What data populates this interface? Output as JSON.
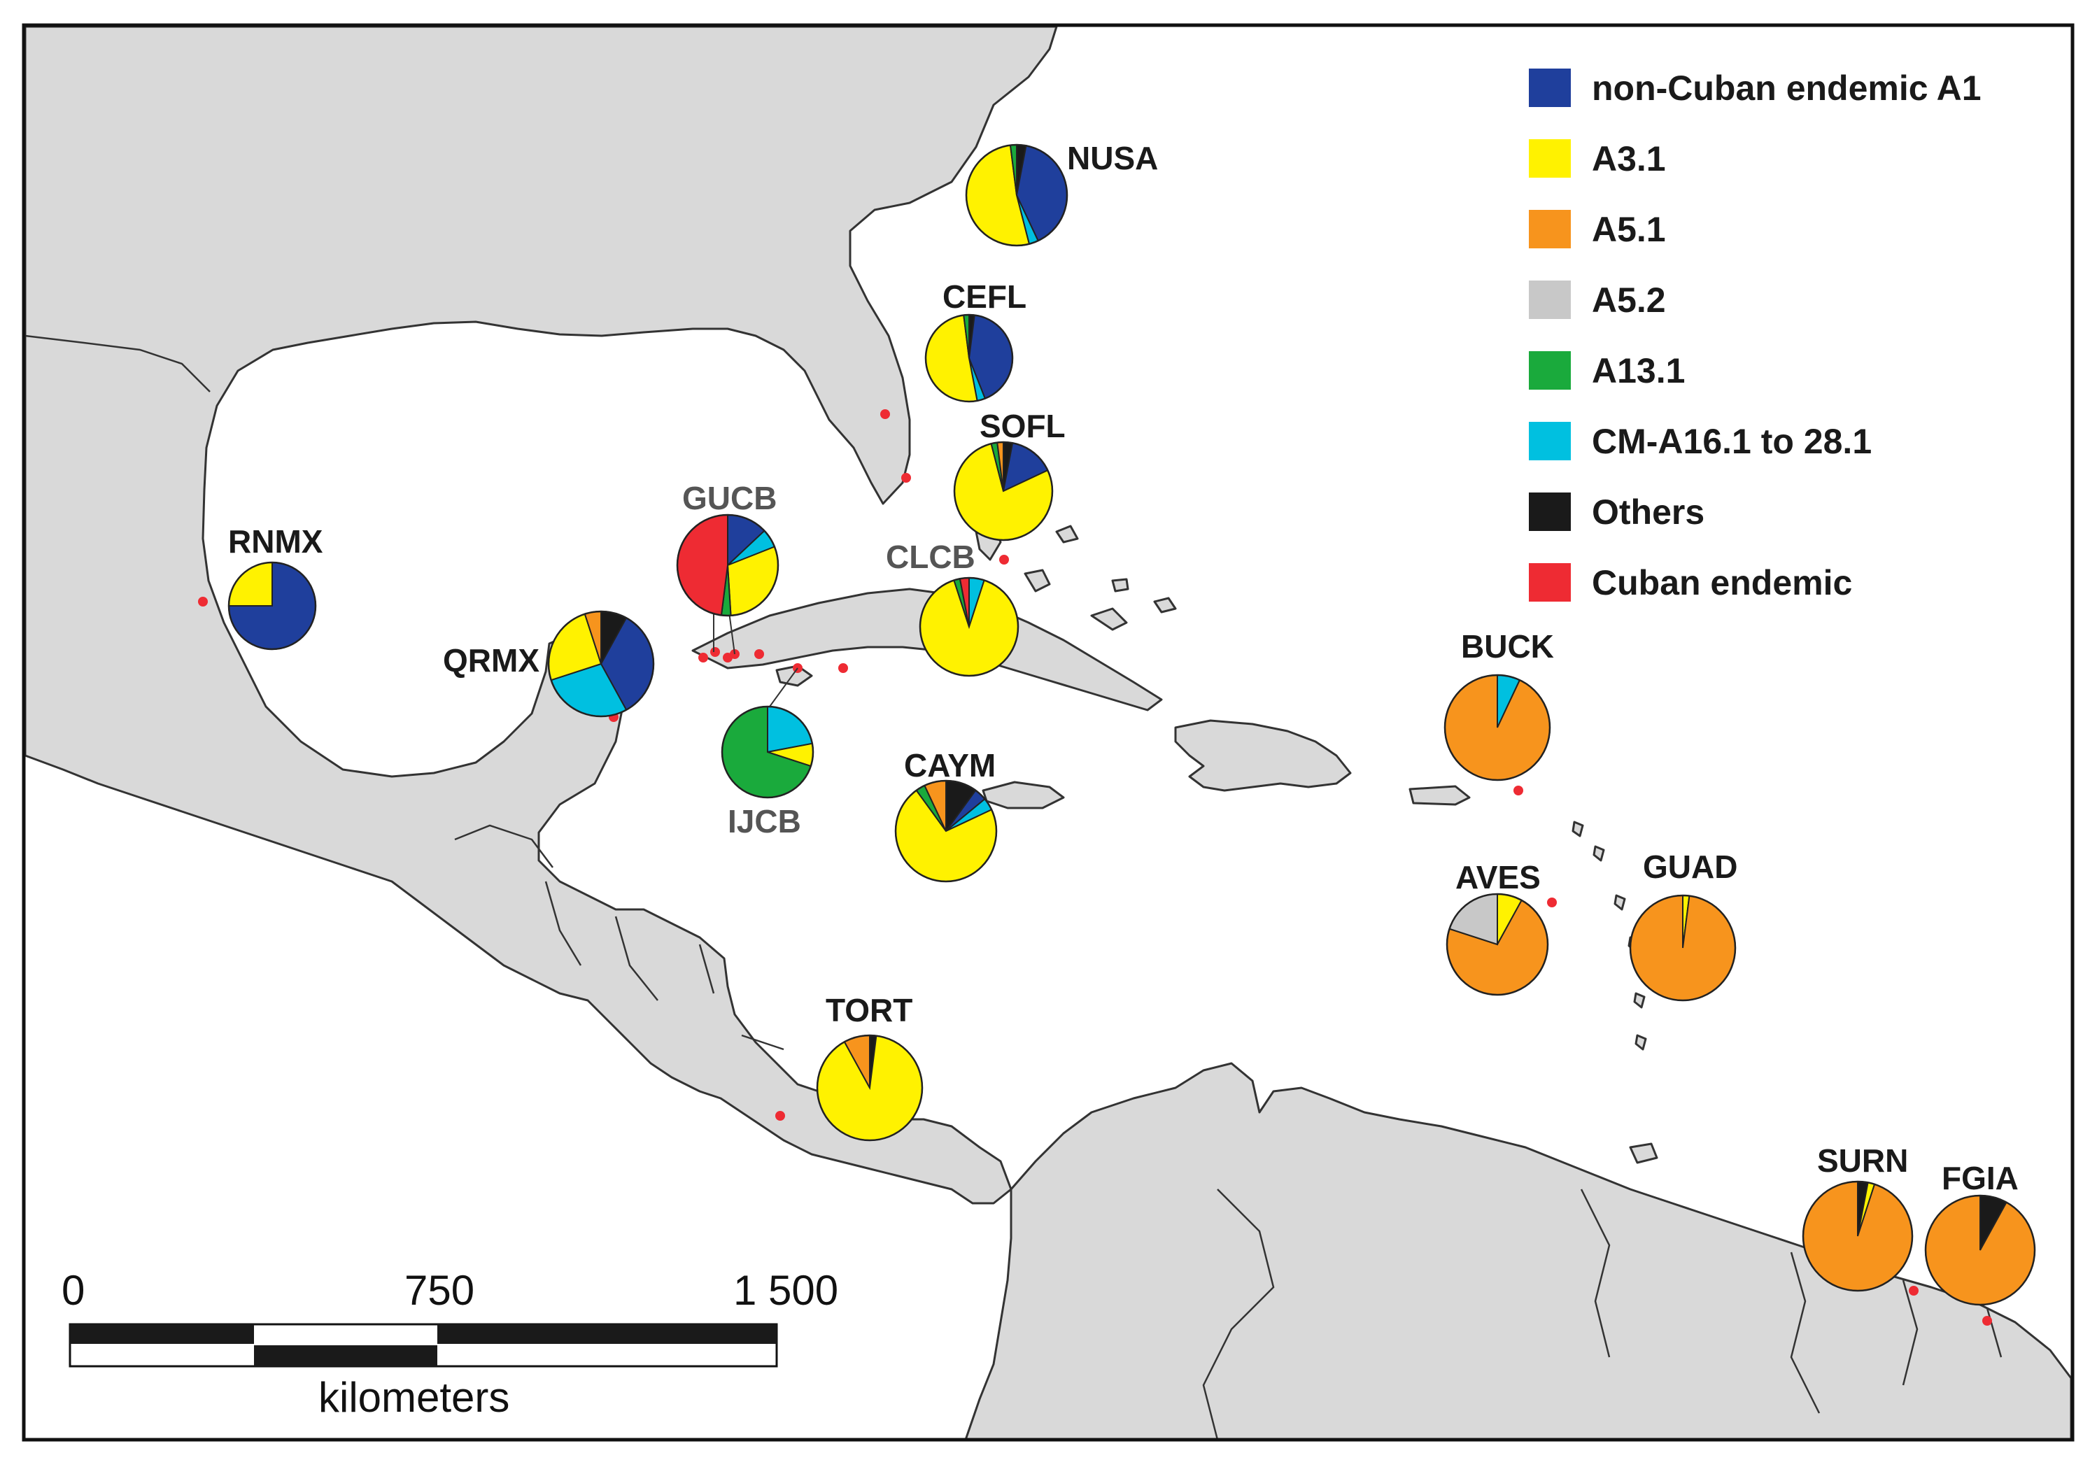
{
  "legend": [
    {
      "key": "A1",
      "label": "non-Cuban endemic A1",
      "color": "#1f3f9c"
    },
    {
      "key": "A3_1",
      "label": "A3.1",
      "color": "#fff200"
    },
    {
      "key": "A5_1",
      "label": "A5.1",
      "color": "#f7941d"
    },
    {
      "key": "A5_2",
      "label": "A5.2",
      "color": "#c8c8c8"
    },
    {
      "key": "A13_1",
      "label": "A13.1",
      "color": "#1aaa3c"
    },
    {
      "key": "CM",
      "label": "CM-A16.1 to 28.1",
      "color": "#00c0e0"
    },
    {
      "key": "Others",
      "label": "Others",
      "color": "#1a1a1a"
    },
    {
      "key": "Cuban",
      "label": "Cuban endemic",
      "color": "#ee2b33"
    }
  ],
  "sites": [
    {
      "code": "NUSA",
      "slices": {
        "A1": 0.4,
        "CM": 0.03,
        "A3_1": 0.52,
        "A13_1": 0.02,
        "Others": 0.03
      }
    },
    {
      "code": "CEFL",
      "slices": {
        "A1": 0.42,
        "CM": 0.03,
        "A3_1": 0.51,
        "A13_1": 0.02,
        "Others": 0.02
      }
    },
    {
      "code": "SOFL",
      "slices": {
        "A1": 0.15,
        "A3_1": 0.78,
        "A13_1": 0.02,
        "A5_1": 0.02,
        "Others": 0.03
      }
    },
    {
      "code": "RNMX",
      "slices": {
        "A1": 0.75,
        "A3_1": 0.25
      }
    },
    {
      "code": "QRMX",
      "slices": {
        "A1": 0.34,
        "CM": 0.28,
        "A3_1": 0.25,
        "A5_1": 0.05,
        "Others": 0.08
      }
    },
    {
      "code": "GUCB",
      "slices": {
        "A1": 0.13,
        "CM": 0.06,
        "A3_1": 0.3,
        "A13_1": 0.03,
        "Cuban": 0.48
      }
    },
    {
      "code": "CLCB",
      "slices": {
        "CM": 0.05,
        "A3_1": 0.9,
        "A13_1": 0.02,
        "Cuban": 0.03
      }
    },
    {
      "code": "IJCB",
      "slices": {
        "CM": 0.22,
        "A3_1": 0.08,
        "A13_1": 0.7
      }
    },
    {
      "code": "CAYM",
      "slices": {
        "A1": 0.04,
        "CM": 0.04,
        "A3_1": 0.72,
        "A13_1": 0.03,
        "A5_1": 0.07,
        "Others": 0.1
      }
    },
    {
      "code": "BUCK",
      "slices": {
        "CM": 0.07,
        "A5_1": 0.93
      }
    },
    {
      "code": "AVES",
      "slices": {
        "A3_1": 0.08,
        "A5_1": 0.72,
        "A5_2": 0.2
      }
    },
    {
      "code": "GUAD",
      "slices": {
        "A3_1": 0.02,
        "A5_1": 0.98
      }
    },
    {
      "code": "TORT",
      "slices": {
        "A3_1": 0.9,
        "A5_1": 0.08,
        "Others": 0.02
      }
    },
    {
      "code": "SURN",
      "slices": {
        "A3_1": 0.02,
        "A5_1": 0.95,
        "Others": 0.03
      }
    },
    {
      "code": "FGIA",
      "slices": {
        "A5_1": 0.92,
        "Others": 0.08
      }
    }
  ],
  "scale_bar": {
    "ticks": [
      "0",
      "750",
      "1 500"
    ],
    "unit": "kilometers"
  }
}
